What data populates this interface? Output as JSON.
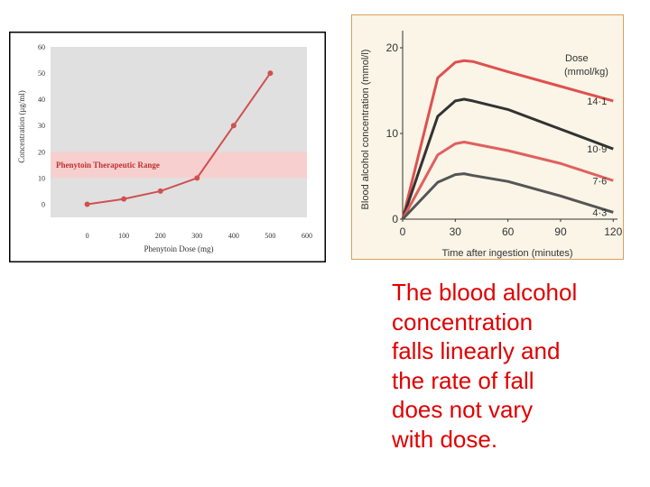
{
  "charts": [
    {
      "chart_data": {
        "type": "line",
        "x": [
          0,
          100,
          200,
          300,
          400,
          500
        ],
        "series": [
          {
            "values": [
              0,
              2,
              5,
              10,
              30,
              50
            ]
          }
        ],
        "xlabel": "Phenytoin Dose (mg)",
        "ylabel": "Concentration (μg/ml)",
        "xticks": [
          0,
          100,
          200,
          300,
          400,
          500,
          600
        ],
        "yticks": [
          0,
          10,
          20,
          30,
          40,
          50,
          60
        ],
        "xlim": [
          -100,
          600
        ],
        "ylim": [
          -5,
          60
        ],
        "band": {
          "label": "Phenytoin Therapeutic Range",
          "from": 10,
          "to": 20
        },
        "grid": false,
        "colors": {
          "line": "#d05050",
          "band": "#f7cfcf",
          "plot_bg": "#e0e0e0",
          "band_label": "#c03030"
        }
      }
    },
    {
      "chart_data": {
        "type": "line",
        "xlabel": "Time after ingestion (minutes)",
        "ylabel": "Blood alcohol concentration (mmol/l)",
        "xticks": [
          0,
          30,
          60,
          90,
          120
        ],
        "yticks": [
          0,
          10,
          20
        ],
        "xlim": [
          0,
          125
        ],
        "ylim": [
          0,
          22
        ],
        "legend_title": "Dose",
        "legend_unit": "(mmol/kg)",
        "series": [
          {
            "name": "14·1",
            "x": [
              0,
              20,
              30,
              35,
              40,
              60,
              90,
              120
            ],
            "y": [
              0,
              16.5,
              18.3,
              18.5,
              18.4,
              17.2,
              15.5,
              13.8
            ],
            "color": "#e05050"
          },
          {
            "name": "10·9",
            "x": [
              0,
              20,
              30,
              35,
              40,
              60,
              90,
              120
            ],
            "y": [
              0,
              12,
              13.8,
              14,
              13.8,
              12.8,
              10.5,
              8.2
            ],
            "color": "#333333"
          },
          {
            "name": "7·6",
            "x": [
              0,
              20,
              30,
              35,
              40,
              60,
              90,
              120
            ],
            "y": [
              0,
              7.5,
              8.8,
              9,
              8.8,
              8,
              6.5,
              4.5
            ],
            "color": "#e06060"
          },
          {
            "name": "4·3",
            "x": [
              0,
              20,
              30,
              35,
              40,
              60,
              90,
              120
            ],
            "y": [
              0,
              4.3,
              5.2,
              5.3,
              5.1,
              4.4,
              2.7,
              0.8
            ],
            "color": "#555555"
          }
        ],
        "grid": false,
        "colors": {
          "background": "#faf5e6",
          "border": "#d9a060",
          "text": "#333333"
        }
      }
    }
  ],
  "caption": {
    "lines": [
      "The blood alcohol",
      "concentration",
      "falls linearly and",
      "the rate of fall",
      "does not vary",
      "with dose."
    ]
  }
}
